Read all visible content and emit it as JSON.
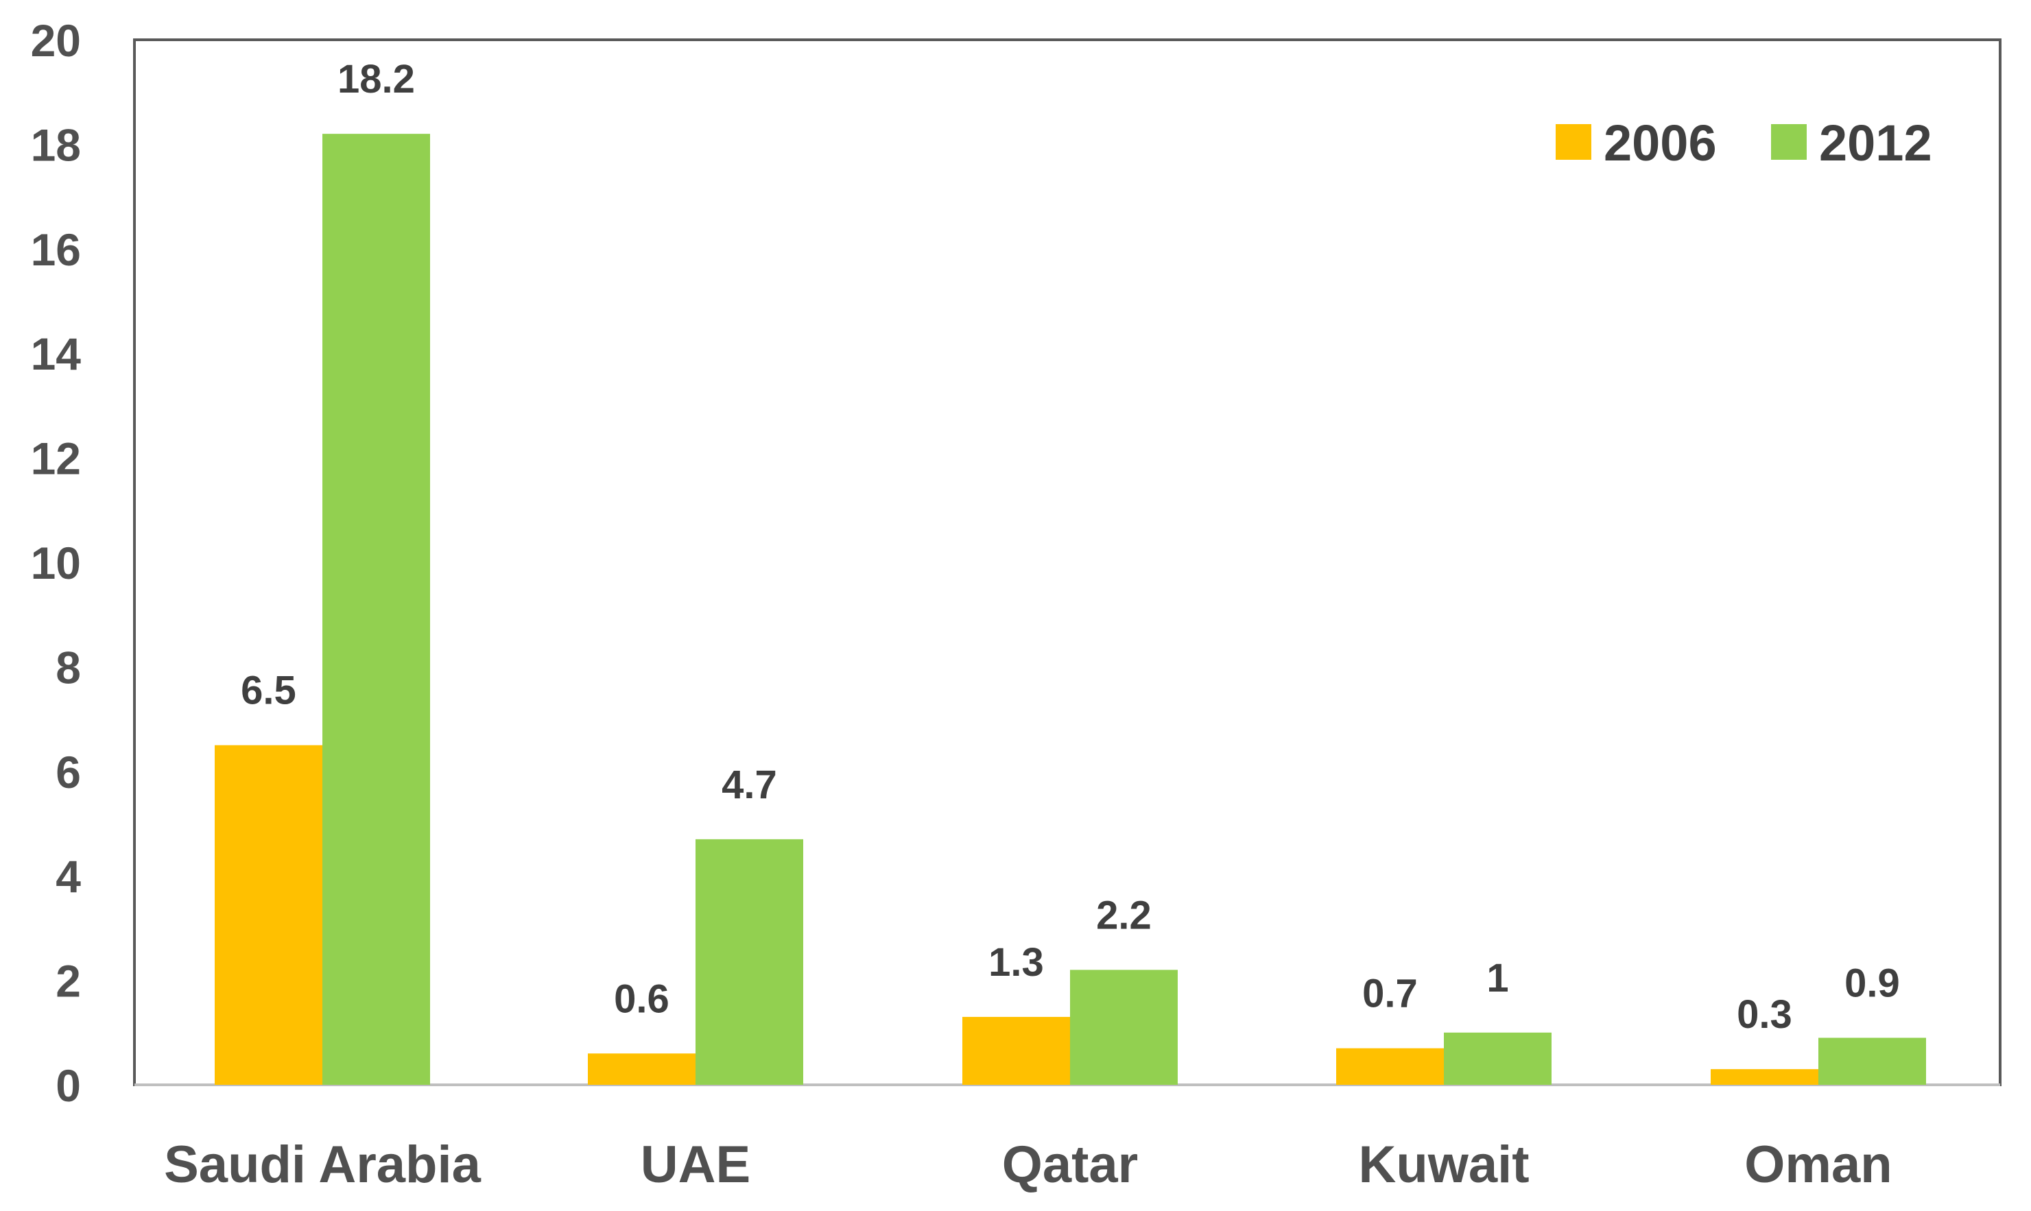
{
  "chart_data": {
    "type": "bar",
    "title": "",
    "xlabel": "",
    "ylabel": "",
    "ylim": [
      0,
      20
    ],
    "yticks": [
      0,
      2,
      4,
      6,
      8,
      10,
      12,
      14,
      16,
      18,
      20
    ],
    "categories": [
      "Saudi Arabia",
      "UAE",
      "Qatar",
      "Kuwait",
      "Oman"
    ],
    "series": [
      {
        "name": "2006",
        "color": "#FFC000",
        "values": [
          6.5,
          0.6,
          1.3,
          0.7,
          0.3
        ],
        "labels": [
          "6.5",
          "0.6",
          "1.3",
          "0.7",
          "0.3"
        ]
      },
      {
        "name": "2012",
        "color": "#92D050",
        "values": [
          18.2,
          4.7,
          2.2,
          1,
          0.9
        ],
        "labels": [
          "18.2",
          "4.7",
          "2.2",
          "1",
          "0.9"
        ]
      }
    ],
    "grid": false,
    "legend_position": "top-right",
    "frame_color": "#595959"
  }
}
